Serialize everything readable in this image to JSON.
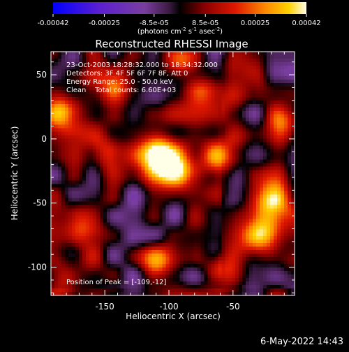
{
  "chart_data": {
    "type": "heatmap",
    "title": "Reconstructed RHESSI Image",
    "xlabel": "Heliocentric X (arcsec)",
    "ylabel": "Heliocentric Y (arcsec)",
    "xlim": [
      -192,
      -2
    ],
    "ylim": [
      -122,
      68
    ],
    "xticks": [
      -150,
      -100,
      -50
    ],
    "yticks": [
      50,
      0,
      -50,
      -100
    ],
    "colorbar": {
      "label_html": "(photons cm<tspan dy=\"-4\" font-size=\"7\">-2</tspan><tspan dy=\"4\"> s</tspan><tspan dy=\"-4\" font-size=\"7\">-1</tspan><tspan dy=\"4\"> asec</tspan><tspan dy=\"-4\" font-size=\"7\">-2</tspan><tspan dy=\"4\">)</tspan>",
      "ticks": [
        "-0.00042",
        "-0.00025",
        "-8.5e-05",
        "8.5e-05",
        "0.00025",
        "0.00042"
      ],
      "range": [
        -0.00042,
        0.00042
      ]
    },
    "annotations": [
      "23-Oct-2003 18:28:32.000 to 18:34:32.000",
      "Detectors: 3F 4F 5F 6F 7F 8F, Att 0",
      "Energy Range: 25.0 - 50.0 keV",
      "Clean    Total counts: 6.60E+03"
    ],
    "peak_label": "Position of Peak = [-109,-12]",
    "peak": [
      -109,
      -12
    ],
    "bright_sources": [
      {
        "x": -109,
        "y": -12,
        "amp": 1.0,
        "sigma": 11
      },
      {
        "x": -95,
        "y": -22,
        "amp": 0.75,
        "sigma": 12
      },
      {
        "x": -60,
        "y": -15,
        "amp": 0.55,
        "sigma": 13
      },
      {
        "x": -20,
        "y": -50,
        "amp": 0.85,
        "sigma": 12
      },
      {
        "x": -28,
        "y": -75,
        "amp": 0.7,
        "sigma": 11
      },
      {
        "x": -110,
        "y": -95,
        "amp": 0.75,
        "sigma": 9
      },
      {
        "x": -180,
        "y": 20,
        "amp": 0.7,
        "sigma": 10
      },
      {
        "x": -165,
        "y": -65,
        "amp": 0.6,
        "sigma": 11
      },
      {
        "x": -140,
        "y": 45,
        "amp": 0.5,
        "sigma": 12
      },
      {
        "x": -70,
        "y": 35,
        "amp": 0.45,
        "sigma": 11
      },
      {
        "x": -10,
        "y": 10,
        "amp": 0.5,
        "sigma": 10
      },
      {
        "x": -150,
        "y": -10,
        "amp": 0.45,
        "sigma": 10
      },
      {
        "x": -60,
        "y": -100,
        "amp": 0.55,
        "sigma": 11
      },
      {
        "x": -180,
        "y": -110,
        "amp": 0.5,
        "sigma": 9
      },
      {
        "x": -90,
        "y": 60,
        "amp": 0.45,
        "sigma": 10
      }
    ]
  },
  "footer": "6-May-2022 14:43"
}
